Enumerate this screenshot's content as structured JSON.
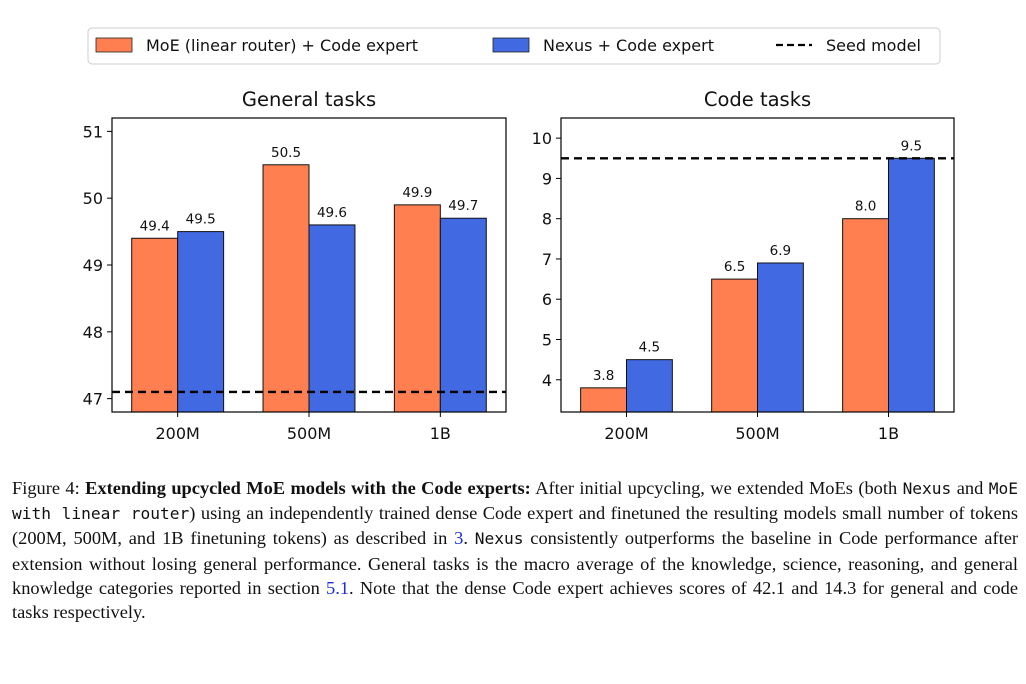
{
  "legend": {
    "entries": [
      {
        "label": "MoE (linear router) + Code expert",
        "color": "#FF7F50",
        "kind": "patch"
      },
      {
        "label": "Nexus + Code expert",
        "color": "#4169E1",
        "kind": "patch"
      },
      {
        "label": "Seed model",
        "color": "#000000",
        "kind": "dashed-line"
      }
    ],
    "placement": "top-center"
  },
  "chart_data": [
    {
      "type": "bar",
      "title": "General tasks",
      "categories": [
        "200M",
        "500M",
        "1B"
      ],
      "series": [
        {
          "name": "MoE (linear router) + Code expert",
          "color": "#FF7F50",
          "values": [
            49.4,
            50.5,
            49.9
          ],
          "labels": [
            "49.4",
            "50.5",
            "49.9"
          ]
        },
        {
          "name": "Nexus + Code expert",
          "color": "#4169E1",
          "values": [
            49.5,
            49.6,
            49.7
          ],
          "labels": [
            "49.5",
            "49.6",
            "49.7"
          ]
        }
      ],
      "hline": {
        "name": "Seed model",
        "value": 47.1
      },
      "ylim": [
        46.8,
        51.2
      ],
      "yticks": [
        47,
        48,
        49,
        50,
        51
      ],
      "xlabel": "",
      "ylabel": "",
      "grid": false
    },
    {
      "type": "bar",
      "title": "Code tasks",
      "categories": [
        "200M",
        "500M",
        "1B"
      ],
      "series": [
        {
          "name": "MoE (linear router) + Code expert",
          "color": "#FF7F50",
          "values": [
            3.8,
            6.5,
            8.0
          ],
          "labels": [
            "3.8",
            "6.5",
            "8.0"
          ]
        },
        {
          "name": "Nexus + Code expert",
          "color": "#4169E1",
          "values": [
            4.5,
            6.9,
            9.5
          ],
          "labels": [
            "4.5",
            "6.9",
            "9.5"
          ]
        }
      ],
      "hline": {
        "name": "Seed model",
        "value": 9.5
      },
      "ylim": [
        3.2,
        10.5
      ],
      "yticks": [
        4,
        5,
        6,
        7,
        8,
        9,
        10
      ],
      "xlabel": "",
      "ylabel": "",
      "grid": false
    }
  ],
  "caption": {
    "label": "Figure 4:",
    "bold_title": "Extending upcycled MoE models with the Code experts:",
    "t1": "After initial upcycling, we extended MoEs (both",
    "code1": "Nexus",
    "t2": "and",
    "code2": "MoE with linear router",
    "t3": ") using an independently trained dense Code expert and finetuned the resulting models small number of tokens (200M, 500M, and 1B finetuning tokens) as described in",
    "ref1": "3",
    "t4": ".",
    "code3": "Nexus",
    "t5": "consistently outperforms the baseline in Code performance after extension without losing general performance. General tasks is the macro average of the knowledge, science, reasoning, and general knowledge categories reported in section",
    "ref2": "5.1",
    "t6": ". Note that the dense Code expert achieves scores of 42.1 and 14.3 for general and code tasks respectively."
  }
}
